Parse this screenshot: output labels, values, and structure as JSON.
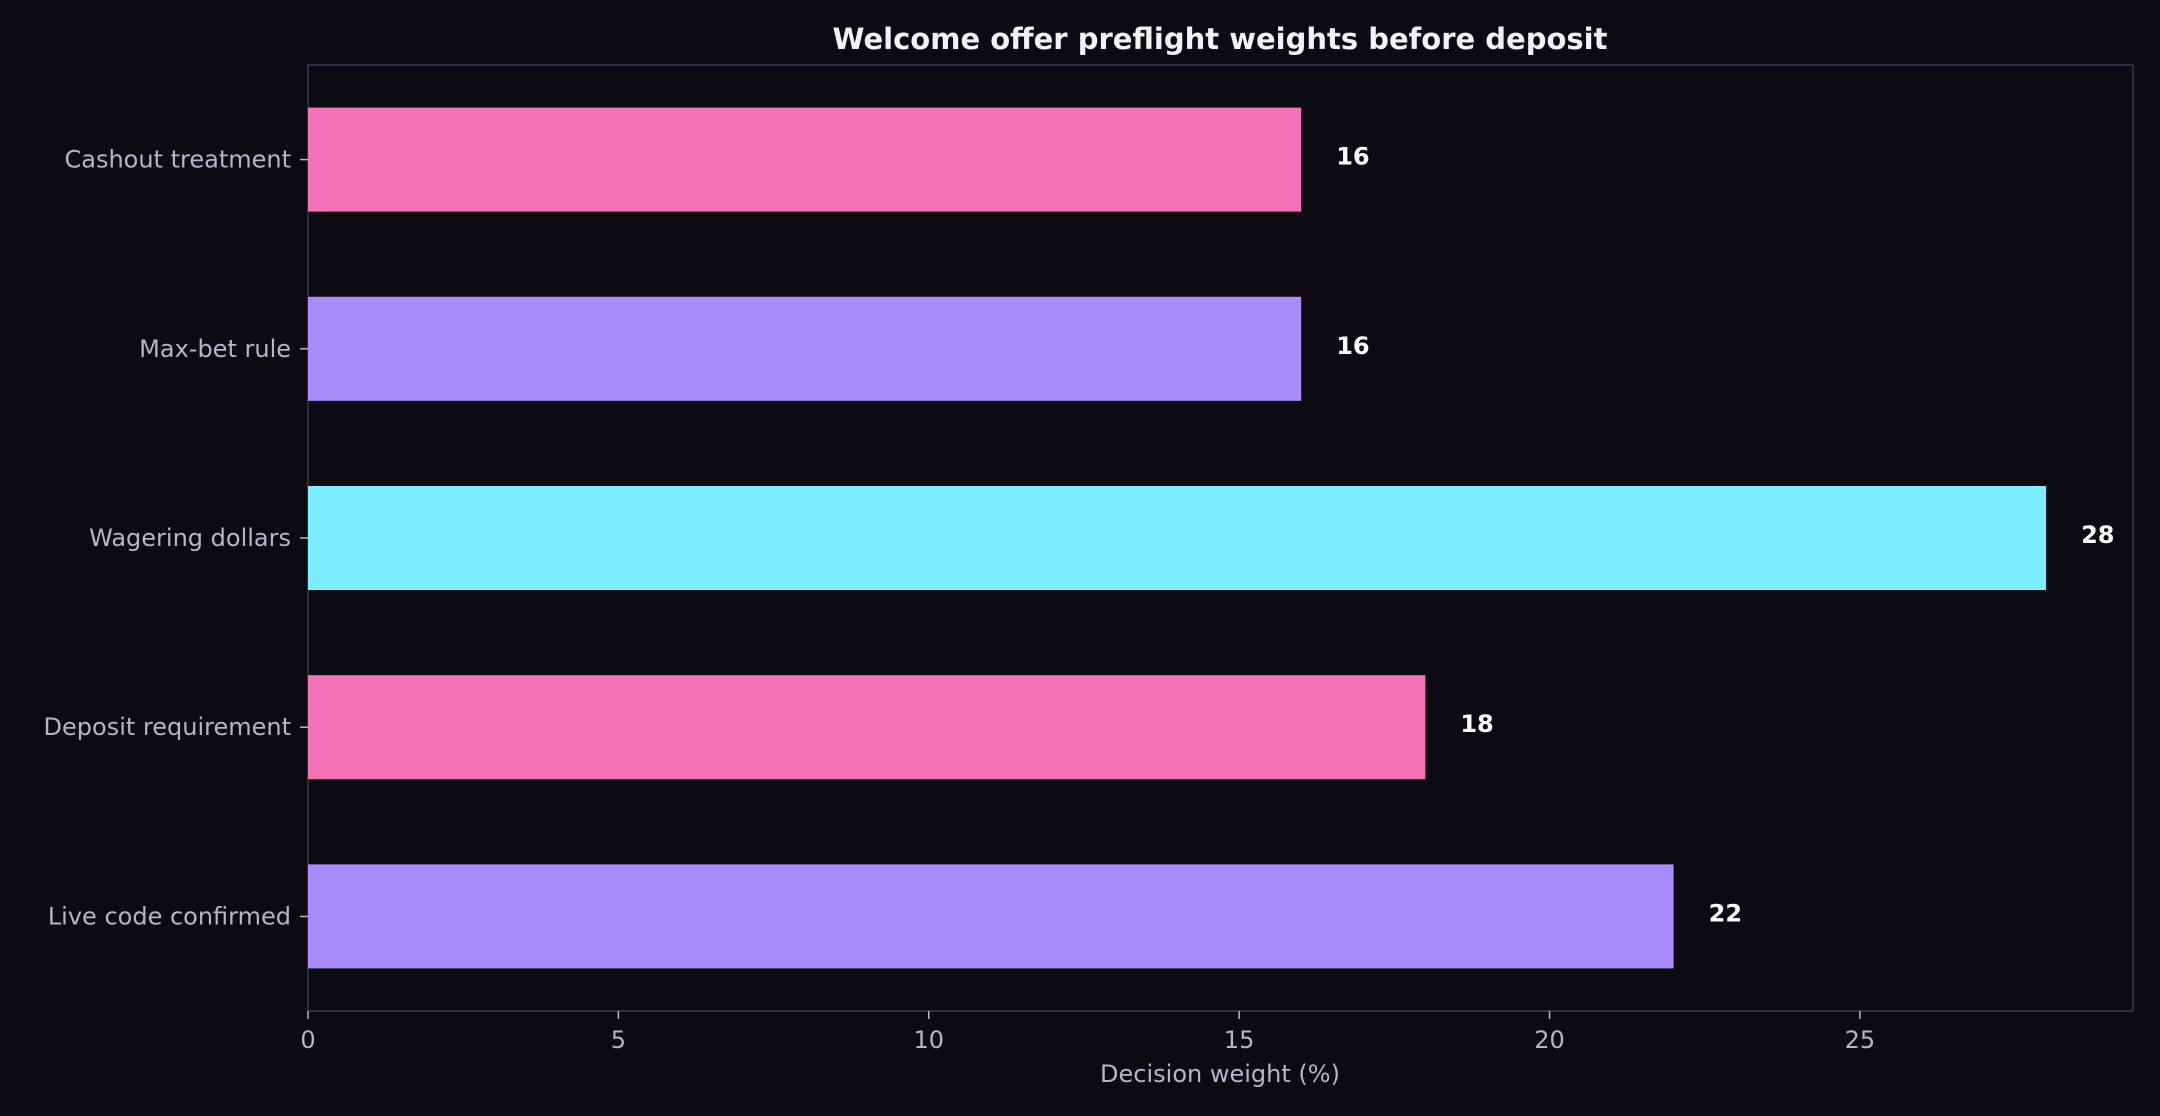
{
  "chart_data": {
    "type": "bar",
    "orientation": "horizontal",
    "title": "Welcome offer preflight weights before deposit",
    "xlabel": "Decision weight (%)",
    "ylabel": "",
    "categories": [
      "Cashout treatment",
      "Max-bet rule",
      "Wagering dollars",
      "Deposit requirement",
      "Live code confirmed"
    ],
    "values": [
      16,
      16,
      28,
      18,
      22
    ],
    "value_labels": [
      "16",
      "16",
      "28",
      "18",
      "22"
    ],
    "bar_colors": [
      "#f472b6",
      "#a78bfa",
      "#7bedff",
      "#f472b6",
      "#a78bfa"
    ],
    "xlim": [
      0,
      29.4
    ],
    "xticks": [
      0,
      5,
      10,
      15,
      20,
      25
    ],
    "xtick_labels": [
      "0",
      "5",
      "10",
      "15",
      "20",
      "25"
    ],
    "grid": false,
    "legend": "none"
  },
  "colors": {
    "background": "#0c0b12",
    "frame": "#3a3850",
    "text": "#b7b4c6",
    "title": "#f2f2f5",
    "value_label": "#ffffff"
  }
}
